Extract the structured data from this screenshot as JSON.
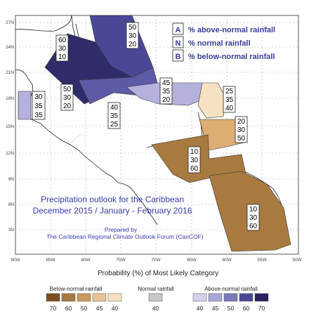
{
  "legend_box": {
    "rows": [
      {
        "letter": "A",
        "text": "% above-normal rainfall"
      },
      {
        "letter": "N",
        "text": "% normal rainfall"
      },
      {
        "letter": "B",
        "text": "% below-normal rainfall"
      }
    ]
  },
  "title": {
    "line1": "Precipitation outlook for the Caribbean",
    "line2": "December 2015 / January - February 2016",
    "prepared_by": "Prepared by",
    "org": "The Caribbean Regional Climate Outlook Forum (CariCOF)"
  },
  "axes": {
    "lat_labels": [
      "27N",
      "24N",
      "21N",
      "18N",
      "15N",
      "12N",
      "9N",
      "6N",
      "3N"
    ],
    "lon_labels": [
      "90W",
      "85W",
      "80W",
      "75W",
      "70W",
      "65W",
      "60W",
      "55W",
      "50W"
    ]
  },
  "regions": [
    {
      "id": "gulf-bahamas-north",
      "color": "#4a4896",
      "A": "50",
      "N": "30",
      "B": "20"
    },
    {
      "id": "bahamas-cuba",
      "color": "#302c6a",
      "A": "60",
      "N": "30",
      "B": "10"
    },
    {
      "id": "jamaica-caymans",
      "color": "#5d5aa6",
      "A": "50",
      "N": "30",
      "B": "20"
    },
    {
      "id": "hispaniola-pr",
      "color": "#b4b2dc",
      "A": "45",
      "N": "35",
      "B": "20"
    },
    {
      "id": "belize",
      "color": "#b4b2dc",
      "A": "30",
      "N": "35",
      "B": "35"
    },
    {
      "id": "caribbean-sea",
      "color": "#ffffff",
      "A": "40",
      "N": "35",
      "B": "25"
    },
    {
      "id": "leeward-islands",
      "color": "#f6e1c3",
      "A": "25",
      "N": "35",
      "B": "40"
    },
    {
      "id": "windward-islands",
      "color": "#dcae72",
      "A": "20",
      "N": "30",
      "B": "50"
    },
    {
      "id": "abc-venezuela",
      "color": "#a87a3f",
      "A": "10",
      "N": "30",
      "B": "60"
    },
    {
      "id": "guianas",
      "color": "#a87a3f",
      "A": "10",
      "N": "30",
      "B": "60"
    }
  ],
  "color_legend": {
    "title": "Probability (%) of Most Likely Category",
    "below": {
      "label": "Below-normal rainfall",
      "values": [
        "70",
        "60",
        "50",
        "45",
        "40"
      ],
      "colors": [
        "#7a4f1f",
        "#a87a3f",
        "#c99a5b",
        "#e8c495",
        "#f6e1c3"
      ]
    },
    "normal": {
      "label": "Normal rainfall",
      "values": [
        "40"
      ],
      "colors": [
        "#c8c8c8"
      ]
    },
    "above": {
      "label": "Above-normal rainfall",
      "values": [
        "40",
        "45",
        "50",
        "60",
        "70"
      ],
      "colors": [
        "#d3d2ec",
        "#a9a7d6",
        "#7d7ab8",
        "#4a4896",
        "#2a2060"
      ]
    }
  }
}
